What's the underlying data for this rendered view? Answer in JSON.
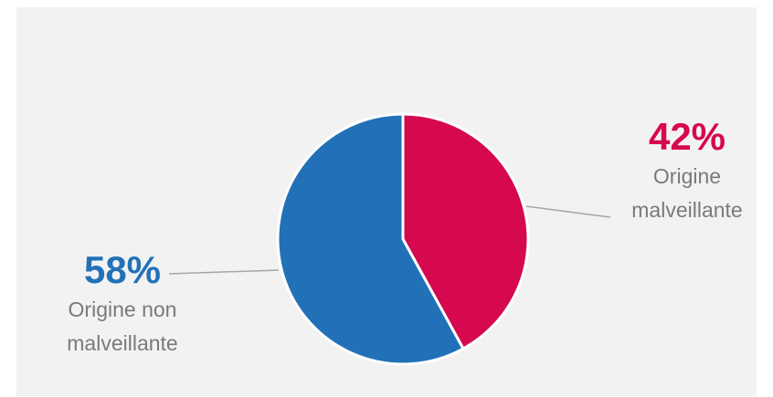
{
  "chart_data": {
    "type": "pie",
    "slices": [
      {
        "label_line1": "Origine",
        "label_line2": "malveillante",
        "value": 42,
        "value_text": "42%",
        "color": "#d6084f"
      },
      {
        "label_line1": "Origine non",
        "label_line2": "malveillante",
        "value": 58,
        "value_text": "58%",
        "color": "#2271b8"
      }
    ],
    "start_angle_deg": 0,
    "direction": "clockwise"
  },
  "colors": {
    "background": "#f2f2f2",
    "slice_border": "#ffffff",
    "leader_line": "#a6a6a6",
    "label_text": "#7a7a7a"
  }
}
